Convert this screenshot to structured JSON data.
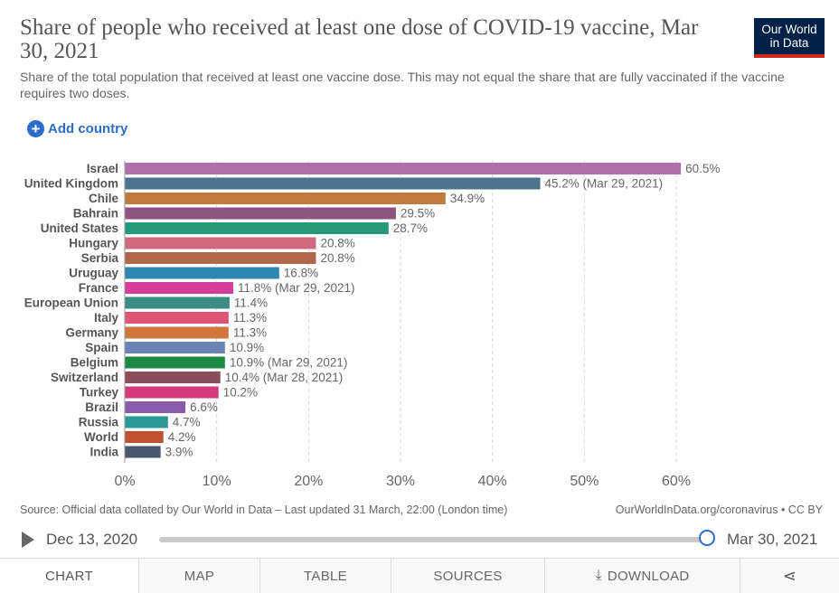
{
  "header": {
    "title": "Share of people who received at least one dose of COVID-19 vaccine, Mar 30, 2021",
    "subtitle": "Share of the total population that received at least one vaccine dose. This may not equal the share that are fully vaccinated if the vaccine requires two doses.",
    "logo_line1": "Our World",
    "logo_line2": "in Data"
  },
  "controls": {
    "add_country": "Add country",
    "plus_glyph": "+"
  },
  "chart_data": {
    "type": "bar",
    "orientation": "horizontal",
    "title": "Share of people who received at least one dose of COVID-19 vaccine, Mar 30, 2021",
    "xlim": [
      0,
      60
    ],
    "xticks": [
      0,
      10,
      20,
      30,
      40,
      50,
      60
    ],
    "tick_suffix": "%",
    "grid": true,
    "bars": [
      {
        "label": "Israel",
        "value": 60.5,
        "text": "60.5%",
        "color": "#b16fa9"
      },
      {
        "label": "United Kingdom",
        "value": 45.2,
        "text": "45.2% (Mar 29, 2021)",
        "color": "#4e7391"
      },
      {
        "label": "Chile",
        "value": 34.9,
        "text": "34.9%",
        "color": "#c07a3b"
      },
      {
        "label": "Bahrain",
        "value": 29.5,
        "text": "29.5%",
        "color": "#8e5480"
      },
      {
        "label": "United States",
        "value": 28.7,
        "text": "28.7%",
        "color": "#249a7b"
      },
      {
        "label": "Hungary",
        "value": 20.8,
        "text": "20.8%",
        "color": "#d1697c"
      },
      {
        "label": "Serbia",
        "value": 20.8,
        "text": "20.8%",
        "color": "#b2664a"
      },
      {
        "label": "Uruguay",
        "value": 16.8,
        "text": "16.8%",
        "color": "#2e86b5"
      },
      {
        "label": "France",
        "value": 11.8,
        "text": "11.8% (Mar 29, 2021)",
        "color": "#d63d9a"
      },
      {
        "label": "European Union",
        "value": 11.4,
        "text": "11.4%",
        "color": "#3c8c83"
      },
      {
        "label": "Italy",
        "value": 11.3,
        "text": "11.3%",
        "color": "#df5576"
      },
      {
        "label": "Germany",
        "value": 11.3,
        "text": "11.3%",
        "color": "#d3773e"
      },
      {
        "label": "Spain",
        "value": 10.9,
        "text": "10.9%",
        "color": "#6a84b5"
      },
      {
        "label": "Belgium",
        "value": 10.9,
        "text": "10.9% (Mar 29, 2021)",
        "color": "#1c8a45"
      },
      {
        "label": "Switzerland",
        "value": 10.4,
        "text": "10.4% (Mar 28, 2021)",
        "color": "#8a4e5a"
      },
      {
        "label": "Turkey",
        "value": 10.2,
        "text": "10.2%",
        "color": "#d33a7a"
      },
      {
        "label": "Brazil",
        "value": 6.6,
        "text": "6.6%",
        "color": "#8b5bab"
      },
      {
        "label": "Russia",
        "value": 4.7,
        "text": "4.7%",
        "color": "#2a9896"
      },
      {
        "label": "World",
        "value": 4.2,
        "text": "4.2%",
        "color": "#c1502e"
      },
      {
        "label": "India",
        "value": 3.9,
        "text": "3.9%",
        "color": "#4a5670"
      }
    ]
  },
  "footer": {
    "source": "Source: Official data collated by Our World in Data – Last updated 31 March, 22:00 (London time)",
    "license": "OurWorldInData.org/coronavirus • CC BY"
  },
  "timeline": {
    "start_date": "Dec 13, 2020",
    "end_date": "Mar 30, 2021",
    "position": 1.0
  },
  "tabs": {
    "chart": "CHART",
    "map": "MAP",
    "table": "TABLE",
    "sources": "SOURCES",
    "download": "DOWNLOAD",
    "download_glyph": "⤓",
    "share_glyph": "⋖"
  }
}
